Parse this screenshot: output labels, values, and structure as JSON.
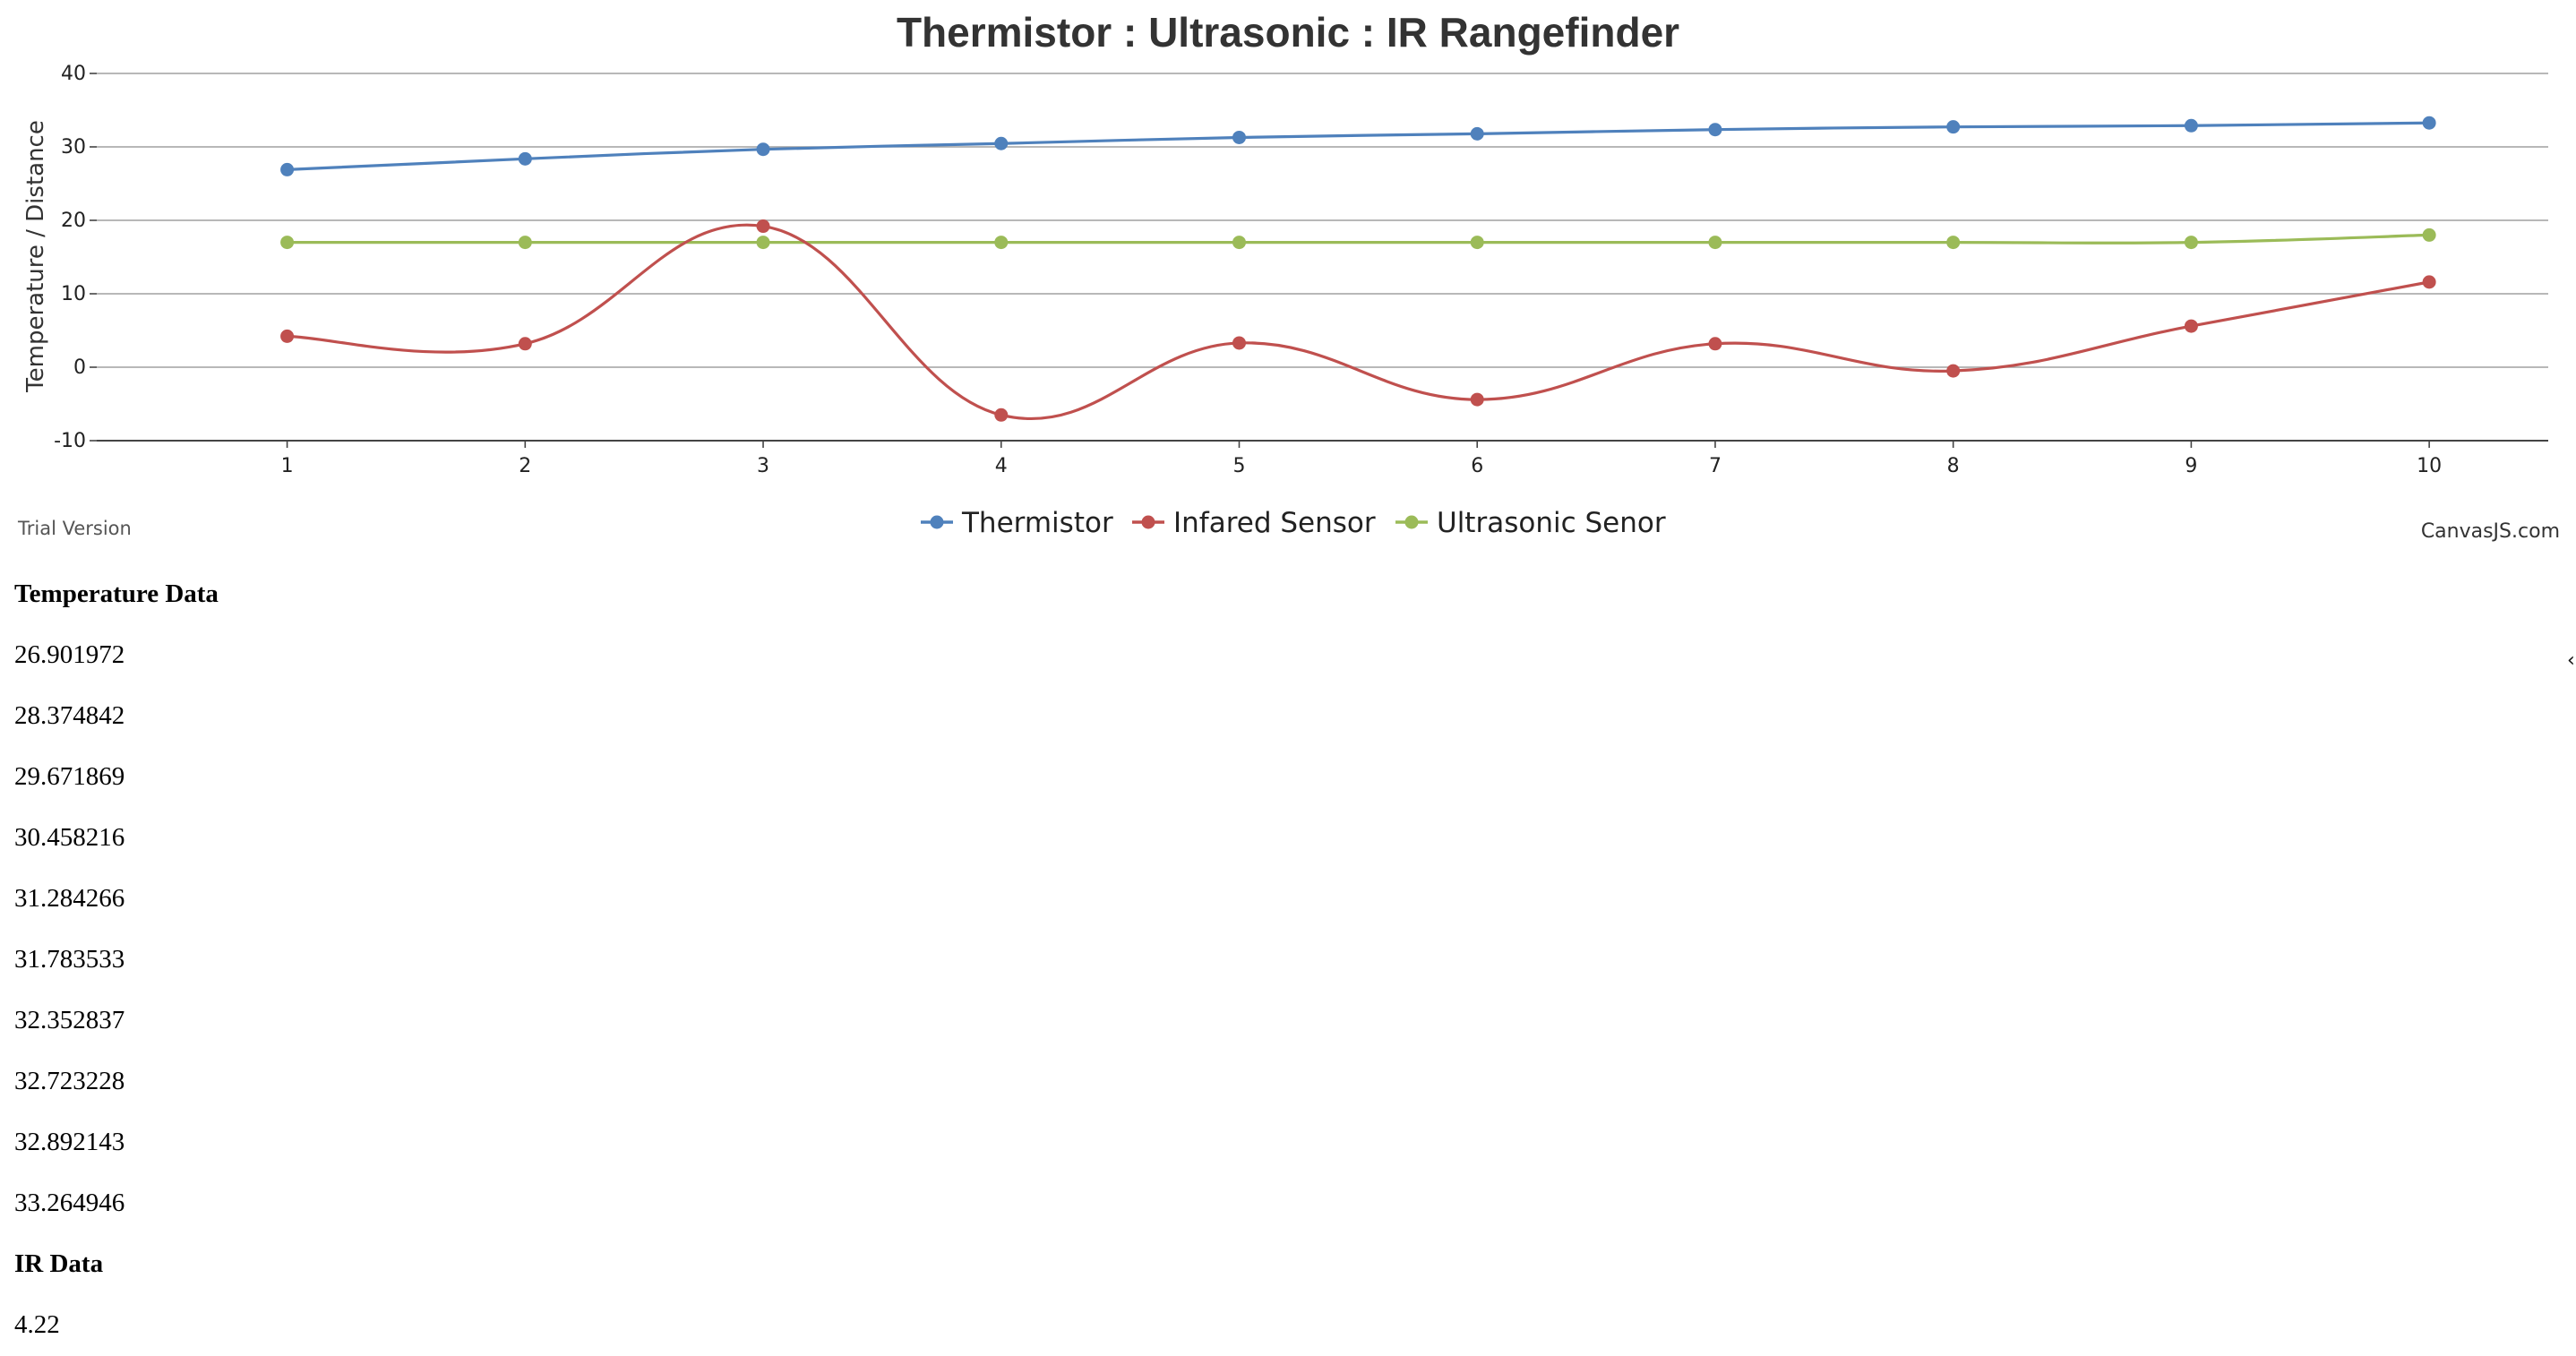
{
  "chart_data": {
    "type": "line",
    "title": "Thermistor : Ultrasonic : IR Rangefinder",
    "ylabel": "Temperature / Distance",
    "xlabel": "",
    "x": [
      1,
      2,
      3,
      4,
      5,
      6,
      7,
      8,
      9,
      10
    ],
    "ylim": [
      -10,
      40
    ],
    "yticks": [
      -10,
      0,
      10,
      20,
      30,
      40
    ],
    "xticks": [
      1,
      2,
      3,
      4,
      5,
      6,
      7,
      8,
      9,
      10
    ],
    "grid": true,
    "legend_position": "bottom",
    "smooth": true,
    "series": [
      {
        "name": "Thermistor",
        "color": "#4f81bc",
        "values": [
          26.901972,
          28.374842,
          29.671869,
          30.458216,
          31.284266,
          31.783533,
          32.352837,
          32.723228,
          32.892143,
          33.264946
        ]
      },
      {
        "name": "Infared Sensor",
        "color": "#c0504e",
        "values": [
          4.22,
          3.2,
          19.2,
          -6.5,
          3.3,
          -4.4,
          3.2,
          -0.5,
          5.6,
          11.6
        ]
      },
      {
        "name": "Ultrasonic Senor",
        "color": "#9bbb58",
        "values": [
          17,
          17,
          17,
          17,
          17,
          17,
          17,
          17,
          17,
          18
        ]
      }
    ]
  },
  "chart_footer": {
    "trial_label": "Trial Version",
    "credit_label": "CanvasJS.com"
  },
  "temperature_section": {
    "heading": "Temperature Data",
    "values": [
      "26.901972",
      "28.374842",
      "29.671869",
      "30.458216",
      "31.284266",
      "31.783533",
      "32.352837",
      "32.723228",
      "32.892143",
      "33.264946"
    ]
  },
  "ir_section": {
    "heading": "IR Data",
    "values": [
      "4.22"
    ]
  },
  "scroll_handle_glyph": "‹"
}
